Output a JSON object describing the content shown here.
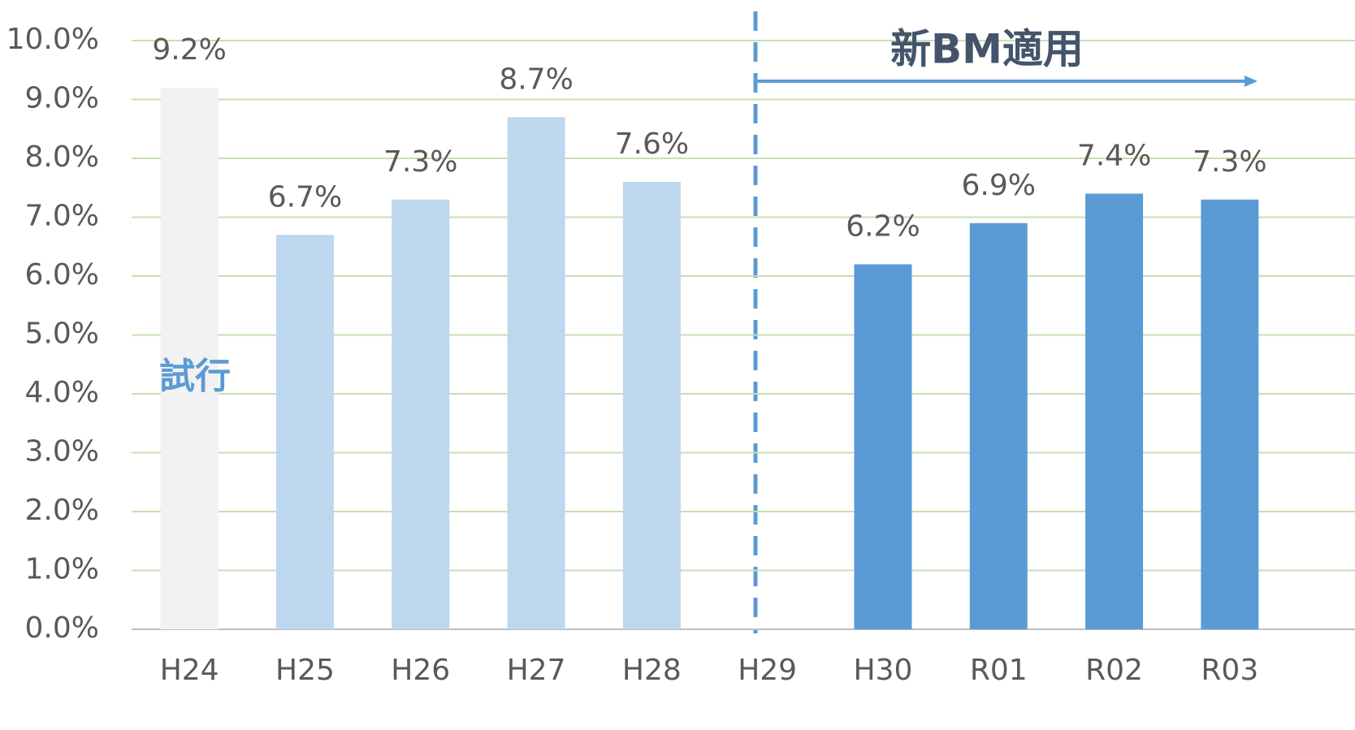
{
  "chart_data": {
    "type": "bar",
    "categories": [
      "H24",
      "H25",
      "H26",
      "H27",
      "H28",
      "H29",
      "H30",
      "R01",
      "R02",
      "R03"
    ],
    "values": [
      9.2,
      6.7,
      7.3,
      8.7,
      7.6,
      null,
      6.2,
      6.9,
      7.4,
      7.3
    ],
    "value_labels": [
      "9.2%",
      "6.7%",
      "7.3%",
      "8.7%",
      "7.6%",
      null,
      "6.2%",
      "6.9%",
      "7.4%",
      "7.3%"
    ],
    "colors": [
      "#f2f2f2",
      "#bdd7ee",
      "#bdd7ee",
      "#bdd7ee",
      "#bdd7ee",
      "#bdd7ee",
      "#5b9bd5",
      "#5b9bd5",
      "#5b9bd5",
      "#5b9bd5"
    ],
    "ylim": [
      0,
      10
    ],
    "yticks": [
      {
        "value": 0,
        "label": "0.0%"
      },
      {
        "value": 1,
        "label": "1.0%"
      },
      {
        "value": 2,
        "label": "2.0%"
      },
      {
        "value": 3,
        "label": "3.0%"
      },
      {
        "value": 4,
        "label": "4.0%"
      },
      {
        "value": 5,
        "label": "5.0%"
      },
      {
        "value": 6,
        "label": "6.0%"
      },
      {
        "value": 7,
        "label": "7.0%"
      },
      {
        "value": 8,
        "label": "8.0%"
      },
      {
        "value": 9,
        "label": "9.0%"
      },
      {
        "value": 10,
        "label": "10.0%"
      }
    ],
    "grid": true,
    "annotations": [
      "試行",
      "新BM適用"
    ]
  }
}
